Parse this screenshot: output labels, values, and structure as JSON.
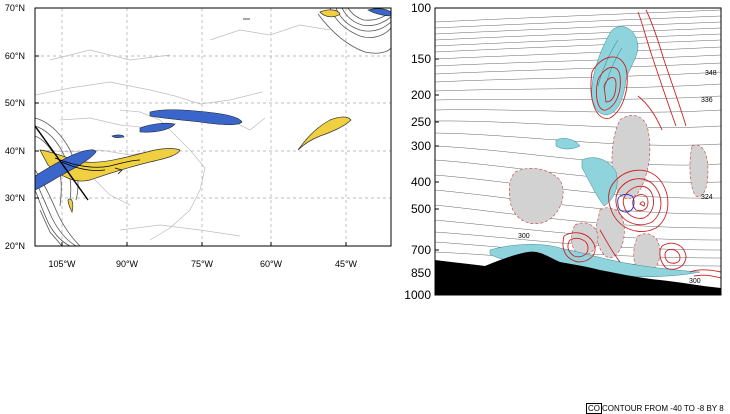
{
  "map": {
    "lat_labels": [
      "70°N",
      "60°N",
      "50°N",
      "40°N",
      "30°N",
      "20°N"
    ],
    "lon_labels": [
      "105°W",
      "90°W",
      "75°W",
      "60°W",
      "45°W"
    ]
  },
  "cross_section": {
    "pressure_labels": [
      "100",
      "150",
      "200",
      "250",
      "300",
      "400",
      "500",
      "700",
      "850",
      "1000"
    ],
    "contour_labels": [
      "348",
      "336",
      "324",
      "300",
      "300"
    ]
  },
  "footer": {
    "prefix": "CO",
    "text": "CONTOUR FROM -40 TO -8 BY 8"
  },
  "colors": {
    "jet_yellow": "#f0d040",
    "jet_blue": "#3a66cc",
    "cyan_fill": "#8fd4dc",
    "gray_fill": "#d2d2d2",
    "red_contour": "#cc2222",
    "terrain": "#000000"
  }
}
